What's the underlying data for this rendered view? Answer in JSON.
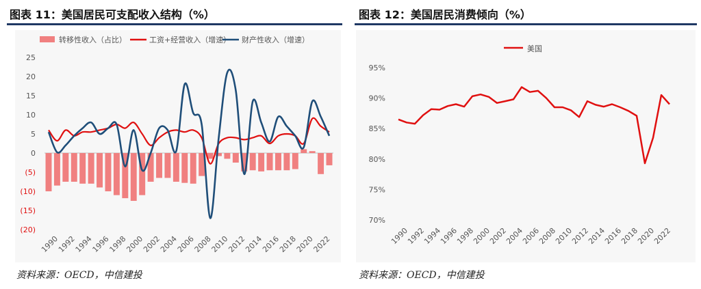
{
  "left": {
    "title": "图表 11：美国居民可支配收入结构（%）",
    "source": "资料来源：OECD，中信建投",
    "chart_data": {
      "type": "bar+line",
      "years": [
        1990,
        1991,
        1992,
        1993,
        1994,
        1995,
        1996,
        1997,
        1998,
        1999,
        2000,
        2001,
        2002,
        2003,
        2004,
        2005,
        2006,
        2007,
        2008,
        2009,
        2010,
        2011,
        2012,
        2013,
        2014,
        2015,
        2016,
        2017,
        2018,
        2019,
        2020,
        2021,
        2022,
        2023
      ],
      "xtick_labels": [
        "1990",
        "1992",
        "1994",
        "1996",
        "1998",
        "2000",
        "2002",
        "2004",
        "2006",
        "2008",
        "2010",
        "2012",
        "2014",
        "2016",
        "2018",
        "2020",
        "2022"
      ],
      "ytick_labels": [
        "25",
        "20",
        "15",
        "10",
        "5",
        "0",
        "(5)",
        "(10)",
        "(15)",
        "(20)"
      ],
      "ytick_values": [
        25,
        20,
        15,
        10,
        5,
        0,
        -5,
        -10,
        -15,
        -20
      ],
      "ylim": [
        -20,
        25
      ],
      "series": [
        {
          "name": "转移性收入（占比）",
          "kind": "bar",
          "color": "#f08080",
          "values": [
            -10,
            -8.5,
            -7.5,
            -7.5,
            -8,
            -8,
            -9,
            -10,
            -11,
            -11.8,
            -12.5,
            -11,
            -7.5,
            -6.5,
            -6.5,
            -7.5,
            -7.8,
            -8,
            -6,
            -1.5,
            -0.8,
            -1.5,
            -2.5,
            -4.8,
            -4.5,
            -4.8,
            -4.5,
            -4.5,
            -4.5,
            -4.2,
            1.0,
            0.5,
            -5.5,
            -3.2
          ]
        },
        {
          "name": "工资+经营收入（增速）",
          "kind": "line",
          "color": "#e01010",
          "values": [
            6.0,
            3.2,
            6.0,
            4.5,
            5.5,
            5.5,
            6.0,
            6.5,
            7.5,
            6.5,
            8.0,
            5.0,
            2.0,
            4.0,
            5.5,
            6.0,
            5.5,
            6.0,
            4.0,
            -2.8,
            2.5,
            4.0,
            4.0,
            3.5,
            4.0,
            4.5,
            2.5,
            4.5,
            5.0,
            4.5,
            2.5,
            9.0,
            7.0,
            5.5
          ]
        },
        {
          "name": "财产性收入（增速）",
          "kind": "line",
          "color": "#1f4e79",
          "values": [
            5.5,
            0.2,
            2.0,
            4.5,
            6.5,
            8.0,
            5.0,
            6.5,
            7.5,
            -3.5,
            6.0,
            -4.5,
            0.0,
            6.5,
            6.0,
            0.5,
            18.0,
            10.5,
            7.5,
            -17.0,
            4.0,
            21.0,
            16.5,
            -5.5,
            13.5,
            8.0,
            3.0,
            9.5,
            7.0,
            4.5,
            1.5,
            13.5,
            9.5,
            4.5
          ]
        }
      ]
    }
  },
  "right": {
    "title": "图表 12：美国居民消费倾向（%）",
    "source": "资料来源：OECD，中信建投",
    "chart_data": {
      "type": "line",
      "years": [
        1990,
        1991,
        1992,
        1993,
        1994,
        1995,
        1996,
        1997,
        1998,
        1999,
        2000,
        2001,
        2002,
        2003,
        2004,
        2005,
        2006,
        2007,
        2008,
        2009,
        2010,
        2011,
        2012,
        2013,
        2014,
        2015,
        2016,
        2017,
        2018,
        2019,
        2020,
        2021,
        2022,
        2023
      ],
      "xtick_labels": [
        "1990",
        "1992",
        "1994",
        "1996",
        "1998",
        "2000",
        "2002",
        "2004",
        "2006",
        "2008",
        "2010",
        "2012",
        "2014",
        "2016",
        "2018",
        "2020",
        "2022"
      ],
      "ytick_labels": [
        "95%",
        "90%",
        "85%",
        "80%",
        "75%",
        "70%"
      ],
      "ytick_values": [
        95,
        90,
        85,
        80,
        75,
        70
      ],
      "ylim": [
        70,
        95
      ],
      "series": [
        {
          "name": "美国",
          "color": "#e01010",
          "values": [
            86.5,
            86.0,
            85.8,
            87.2,
            88.2,
            88.1,
            88.7,
            89.0,
            88.6,
            90.3,
            90.6,
            90.2,
            89.2,
            89.5,
            89.8,
            91.8,
            91.0,
            91.2,
            90.0,
            88.5,
            88.5,
            88.0,
            86.9,
            89.5,
            88.9,
            88.6,
            89.0,
            88.5,
            87.9,
            87.1,
            79.3,
            83.5,
            90.5,
            89.0
          ]
        }
      ]
    }
  }
}
